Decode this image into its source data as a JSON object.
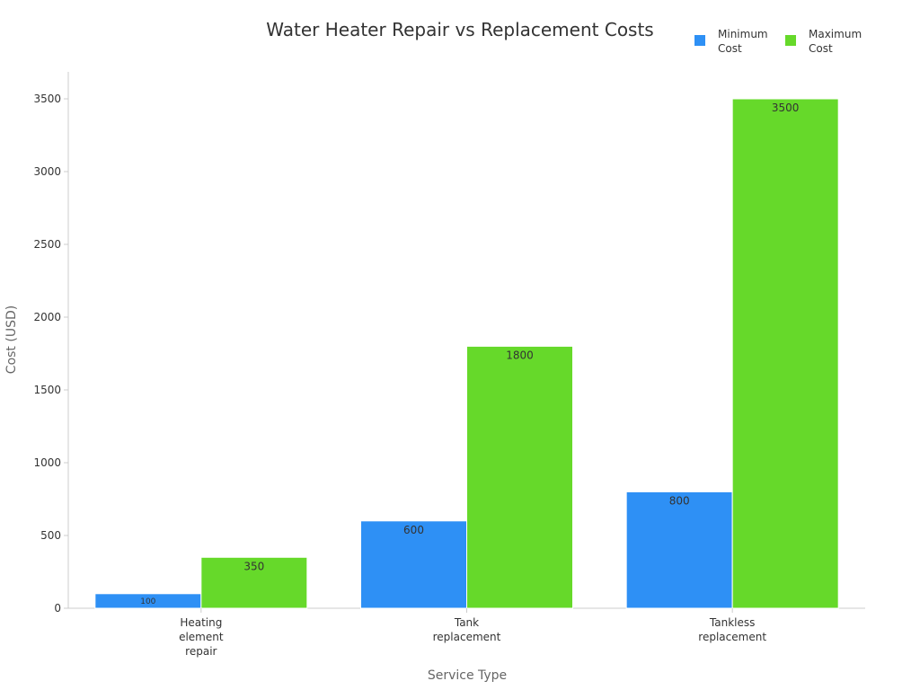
{
  "chart_data": {
    "type": "bar",
    "title": "Water Heater Repair vs Replacement Costs",
    "xlabel": "Service Type",
    "ylabel": "Cost (USD)",
    "categories": [
      [
        "Heating",
        "element",
        "repair"
      ],
      [
        "Tank",
        "replacement"
      ],
      [
        "Tankless",
        "replacement"
      ]
    ],
    "series": [
      {
        "name": [
          "Minimum",
          "Cost"
        ],
        "values": [
          100,
          600,
          800
        ],
        "color": "#2e90f5"
      },
      {
        "name": [
          "Maximum",
          "Cost"
        ],
        "values": [
          350,
          1800,
          3500
        ],
        "color": "#66d92a"
      }
    ],
    "ylim": [
      0,
      3500
    ],
    "yticks": [
      0,
      500,
      1000,
      1500,
      2000,
      2500,
      3000,
      3500
    ],
    "grid": false,
    "legend_position": "top-right",
    "data_labels": true
  }
}
